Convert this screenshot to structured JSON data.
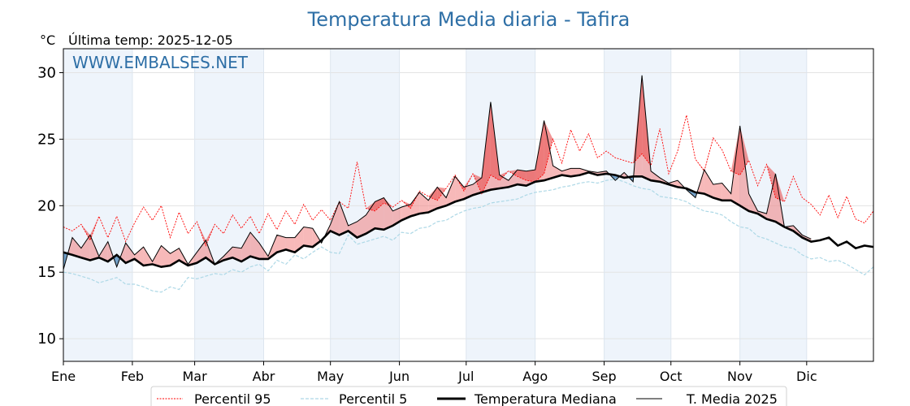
{
  "chart_data": {
    "type": "line",
    "title": "Temperatura Media diaria - Tafira",
    "unit_label": "°C",
    "subtitle": "Última temp: 2025-12-05",
    "watermark": "WWW.EMBALSES.NET",
    "xlabel": "",
    "ylabel": "°C",
    "ylim": [
      8.3,
      31.8
    ],
    "yticks": [
      10,
      15,
      20,
      25,
      30
    ],
    "xlim_days": [
      1,
      365
    ],
    "month_ticks": [
      {
        "label": "Ene",
        "day": 1
      },
      {
        "label": "Feb",
        "day": 32
      },
      {
        "label": "Mar",
        "day": 60
      },
      {
        "label": "Abr",
        "day": 91
      },
      {
        "label": "May",
        "day": 121
      },
      {
        "label": "Jun",
        "day": 152
      },
      {
        "label": "Jul",
        "day": 182
      },
      {
        "label": "Ago",
        "day": 213
      },
      {
        "label": "Sep",
        "day": 244
      },
      {
        "label": "Oct",
        "day": 274
      },
      {
        "label": "Nov",
        "day": 305
      },
      {
        "label": "Dic",
        "day": 335
      }
    ],
    "shaded_months": [
      "Ene",
      "Mar",
      "May",
      "Jul",
      "Sep",
      "Nov"
    ],
    "grid": true,
    "legend_position": "bottom-center",
    "colors": {
      "p95": "#ff0000",
      "p5": "#add8e6",
      "median": "#000000",
      "current": "#000000",
      "above_fill": "#f08080",
      "below_fill": "#4682b4",
      "title": "#2e6fa6",
      "month_band": "#eef4fb"
    },
    "x": [
      1,
      5,
      9,
      13,
      17,
      21,
      25,
      29,
      33,
      37,
      41,
      45,
      49,
      53,
      57,
      61,
      65,
      69,
      73,
      77,
      81,
      85,
      89,
      93,
      97,
      101,
      105,
      109,
      113,
      117,
      121,
      125,
      129,
      133,
      137,
      141,
      145,
      149,
      153,
      157,
      161,
      165,
      169,
      173,
      177,
      181,
      185,
      189,
      193,
      197,
      201,
      205,
      209,
      213,
      217,
      221,
      225,
      229,
      233,
      237,
      241,
      245,
      249,
      253,
      257,
      261,
      265,
      269,
      273,
      277,
      281,
      285,
      289,
      293,
      297,
      301,
      305,
      309,
      313,
      317,
      321,
      325,
      329,
      333,
      337,
      341,
      345,
      349,
      353,
      357,
      361,
      365
    ],
    "series": [
      {
        "name": "Percentil 95",
        "style": "dotted",
        "values": [
          18.4,
          18.1,
          18.6,
          17.4,
          19.2,
          17.6,
          19.2,
          17.3,
          18.7,
          19.9,
          18.9,
          20.0,
          17.6,
          19.5,
          17.9,
          18.8,
          17.0,
          18.6,
          17.9,
          19.3,
          18.3,
          19.2,
          17.9,
          19.4,
          18.2,
          19.6,
          18.6,
          20.1,
          18.9,
          19.7,
          18.9,
          20.3,
          19.8,
          23.3,
          19.8,
          19.6,
          20.2,
          19.9,
          20.4,
          19.8,
          21.1,
          20.7,
          20.4,
          21.3,
          22.3,
          21.1,
          22.4,
          20.9,
          22.3,
          21.9,
          22.6,
          22.2,
          21.9,
          21.8,
          22.4,
          25.0,
          23.2,
          25.7,
          24.1,
          25.4,
          23.6,
          24.1,
          23.6,
          23.4,
          23.2,
          23.9,
          23.0,
          25.8,
          22.4,
          24.1,
          26.8,
          23.5,
          22.6,
          25.1,
          24.2,
          22.6,
          22.3,
          23.4,
          21.5,
          23.1,
          20.6,
          20.3,
          22.2,
          20.6,
          20.1,
          19.3,
          20.8,
          19.1,
          20.7,
          19.0,
          18.7,
          19.6
        ]
      },
      {
        "name": "Percentil 5",
        "style": "dashed",
        "values": [
          15.0,
          14.9,
          14.7,
          14.5,
          14.2,
          14.4,
          14.6,
          14.1,
          14.1,
          13.9,
          13.6,
          13.5,
          13.9,
          13.7,
          14.6,
          14.5,
          14.7,
          14.9,
          14.8,
          15.2,
          15.0,
          15.4,
          15.6,
          15.1,
          15.9,
          15.6,
          16.3,
          16.0,
          16.5,
          16.9,
          16.5,
          16.4,
          17.8,
          17.1,
          17.3,
          17.5,
          17.7,
          17.4,
          18.0,
          17.9,
          18.3,
          18.4,
          18.8,
          18.9,
          19.3,
          19.6,
          19.8,
          19.9,
          20.2,
          20.3,
          20.4,
          20.5,
          20.8,
          21.0,
          21.1,
          21.2,
          21.4,
          21.5,
          21.7,
          21.8,
          21.7,
          21.9,
          22.0,
          21.8,
          21.5,
          21.3,
          21.2,
          20.7,
          20.6,
          20.5,
          20.3,
          19.9,
          19.6,
          19.5,
          19.3,
          18.8,
          18.4,
          18.3,
          17.7,
          17.5,
          17.2,
          16.9,
          16.8,
          16.3,
          16.0,
          16.1,
          15.8,
          15.9,
          15.6,
          15.2,
          14.8,
          15.4
        ]
      },
      {
        "name": "Temperatura Mediana",
        "style": "thick",
        "values": [
          16.5,
          16.3,
          16.1,
          15.9,
          16.1,
          15.8,
          16.3,
          15.7,
          16.0,
          15.5,
          15.6,
          15.4,
          15.5,
          15.9,
          15.5,
          15.7,
          16.1,
          15.6,
          15.9,
          16.1,
          15.8,
          16.2,
          16.0,
          16.0,
          16.5,
          16.7,
          16.5,
          17.0,
          16.9,
          17.4,
          18.1,
          17.8,
          18.1,
          17.6,
          17.9,
          18.3,
          18.2,
          18.5,
          18.9,
          19.2,
          19.4,
          19.5,
          19.8,
          20.0,
          20.3,
          20.5,
          20.8,
          21.0,
          21.2,
          21.3,
          21.4,
          21.6,
          21.5,
          21.8,
          21.9,
          22.1,
          22.3,
          22.2,
          22.3,
          22.5,
          22.3,
          22.4,
          22.3,
          22.1,
          22.2,
          22.2,
          21.9,
          21.8,
          21.6,
          21.4,
          21.3,
          21.0,
          20.9,
          20.6,
          20.4,
          20.4,
          20.0,
          19.6,
          19.4,
          19.0,
          18.8,
          18.4,
          18.1,
          17.6,
          17.3,
          17.4,
          17.6,
          17.0,
          17.3,
          16.8,
          17.0,
          16.9
        ]
      },
      {
        "name": "T. Media 2025",
        "style": "thin",
        "values": [
          15.2,
          17.6,
          16.8,
          17.8,
          16.2,
          17.3,
          15.4,
          17.2,
          16.3,
          16.9,
          15.8,
          17.0,
          16.4,
          16.8,
          15.6,
          16.5,
          17.4,
          15.6,
          16.2,
          16.9,
          16.8,
          18.0,
          17.2,
          16.2,
          17.8,
          17.6,
          17.6,
          18.4,
          18.3,
          17.2,
          18.6,
          20.3,
          18.5,
          18.8,
          19.3,
          20.3,
          20.6,
          19.6,
          19.9,
          20.1,
          21.0,
          20.4,
          21.4,
          20.6,
          22.2,
          21.4,
          21.6,
          22.1,
          27.8,
          22.3,
          21.9,
          22.7,
          22.6,
          22.7,
          26.4,
          23.0,
          22.6,
          22.8,
          22.8,
          22.6,
          22.5,
          22.6,
          21.9,
          22.5,
          21.8,
          29.8,
          22.6,
          22.1,
          21.7,
          21.9,
          21.2,
          20.6,
          22.7,
          21.6,
          21.7,
          20.9,
          26.0,
          20.9,
          19.6,
          19.4,
          22.4,
          18.4,
          18.5,
          17.8,
          17.5
        ]
      }
    ]
  },
  "legend": {
    "items": [
      "Percentil 95",
      "Percentil 5",
      "Temperatura Mediana",
      "T. Media 2025"
    ]
  }
}
